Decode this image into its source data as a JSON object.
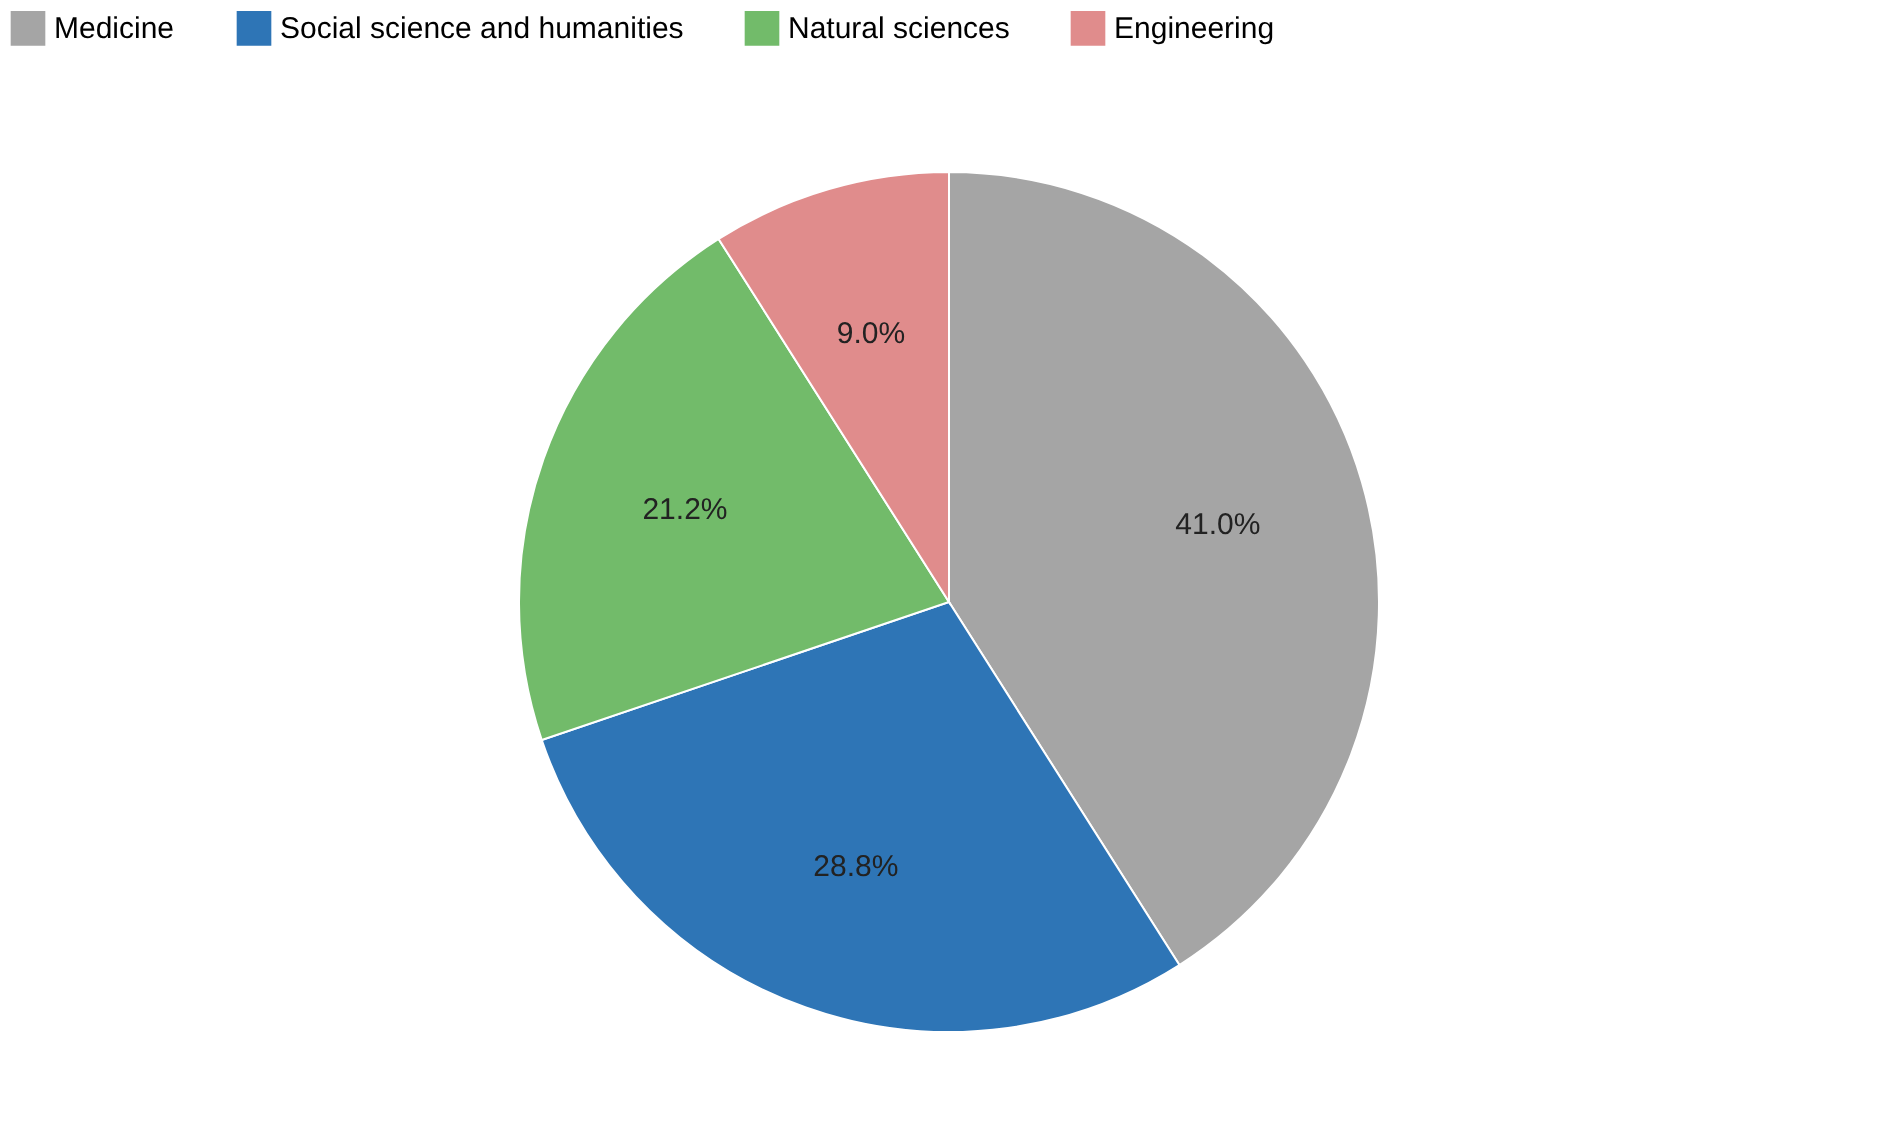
{
  "chart_data": {
    "type": "pie",
    "categories": [
      "Medicine",
      "Social science and humanities",
      "Natural sciences",
      "Engineering"
    ],
    "values": [
      41.0,
      28.8,
      21.2,
      9.0
    ],
    "colors": [
      "#a5a5a5",
      "#2e75b6",
      "#72bb6a",
      "#e08c8c"
    ],
    "value_labels": [
      "41.0%",
      "28.8%",
      "21.2%",
      "9.0%"
    ],
    "legend": "top"
  }
}
